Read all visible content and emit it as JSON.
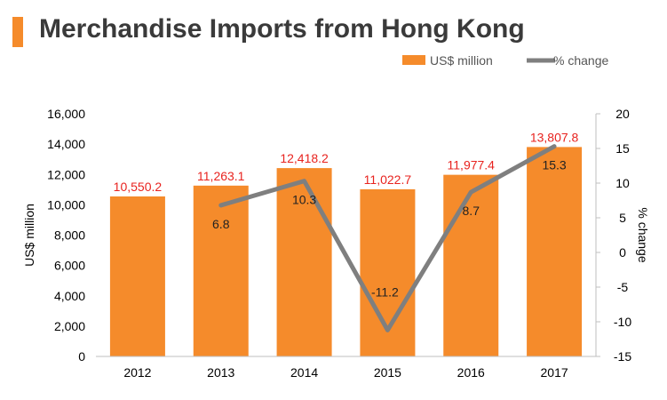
{
  "header": {
    "title": "Merchandise Imports from Hong Kong"
  },
  "colors": {
    "bar": "#f58b2b",
    "line": "#7f7f7f",
    "value_label": "#e8231f",
    "title_bar": "#f58b2b"
  },
  "chart_data": {
    "type": "bar",
    "title": "Merchandise Imports from Hong Kong",
    "categories": [
      "2012",
      "2013",
      "2014",
      "2015",
      "2016",
      "2017"
    ],
    "series": [
      {
        "name": "US$ million",
        "type": "bar",
        "axis": "left",
        "values": [
          10550.2,
          11263.1,
          12418.2,
          11022.7,
          11977.4,
          13807.8
        ],
        "labels": [
          "10,550.2",
          "11,263.1",
          "12,418.2",
          "11,022.7",
          "11,977.4",
          "13,807.8"
        ]
      },
      {
        "name": "% change",
        "type": "line",
        "axis": "right",
        "values": [
          null,
          6.8,
          10.3,
          -11.2,
          8.7,
          15.3
        ],
        "labels": [
          "",
          "6.8",
          "10.3",
          "-11.2",
          "8.7",
          "15.3"
        ]
      }
    ],
    "ylabel": "US$ million",
    "ylim": [
      0,
      16000
    ],
    "yticks": [
      "0",
      "2,000",
      "4,000",
      "6,000",
      "8,000",
      "10,000",
      "12,000",
      "14,000",
      "16,000"
    ],
    "y2label": "% change",
    "y2lim": [
      -15,
      20
    ],
    "y2ticks": [
      "-15",
      "-10",
      "-5",
      "0",
      "5",
      "10",
      "15",
      "20"
    ],
    "legend": [
      "US$ million",
      "% change"
    ],
    "legend_position": "top-right"
  }
}
